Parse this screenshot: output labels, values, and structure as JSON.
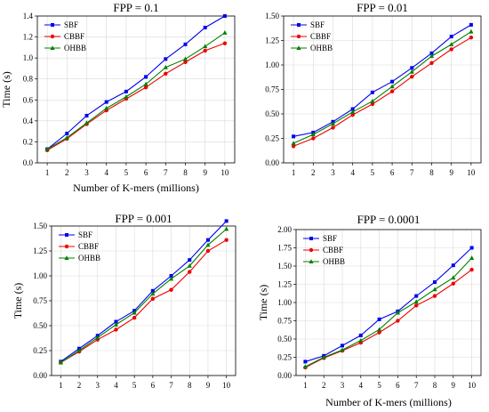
{
  "chart_data": [
    {
      "type": "line",
      "title": "FPP = 0.1",
      "xlabel": "Number of K-mers (millions)",
      "ylabel": "Time (s)",
      "x": [
        1,
        2,
        3,
        4,
        5,
        6,
        7,
        8,
        9,
        10
      ],
      "ylim": [
        0,
        1.4
      ],
      "yticks": [
        0,
        0.2,
        0.4,
        0.6,
        0.8,
        1.0,
        1.2,
        1.4
      ],
      "ytick_labels": [
        "0.0",
        "0.2",
        "0.4",
        "0.6",
        "0.8",
        "1.0",
        "1.2",
        "1.4"
      ],
      "grid": true,
      "legend": "top-left",
      "series": [
        {
          "name": "SBF",
          "color": "#0000ee",
          "marker": "square",
          "values": [
            0.13,
            0.28,
            0.45,
            0.58,
            0.68,
            0.82,
            0.99,
            1.13,
            1.29,
            1.4
          ]
        },
        {
          "name": "CBBF",
          "color": "#ee0000",
          "marker": "circle",
          "values": [
            0.12,
            0.23,
            0.37,
            0.5,
            0.61,
            0.72,
            0.85,
            0.96,
            1.07,
            1.14
          ]
        },
        {
          "name": "OHBB",
          "color": "#008000",
          "marker": "triangle",
          "values": [
            0.13,
            0.24,
            0.38,
            0.52,
            0.63,
            0.75,
            0.91,
            0.99,
            1.11,
            1.24
          ]
        }
      ]
    },
    {
      "type": "line",
      "title": "FPP = 0.01",
      "xlabel": "",
      "ylabel": "",
      "x": [
        1,
        2,
        3,
        4,
        5,
        6,
        7,
        8,
        9,
        10
      ],
      "ylim": [
        0,
        1.5
      ],
      "yticks": [
        0,
        0.25,
        0.5,
        0.75,
        1.0,
        1.25,
        1.5
      ],
      "ytick_labels": [
        "0.00",
        "0.25",
        "0.50",
        "0.75",
        "1.00",
        "1.25",
        "1.50"
      ],
      "grid": true,
      "legend": "top-left",
      "series": [
        {
          "name": "SBF",
          "color": "#0000ee",
          "marker": "square",
          "values": [
            0.27,
            0.31,
            0.42,
            0.55,
            0.72,
            0.83,
            0.97,
            1.12,
            1.29,
            1.41
          ]
        },
        {
          "name": "CBBF",
          "color": "#ee0000",
          "marker": "circle",
          "values": [
            0.17,
            0.25,
            0.36,
            0.49,
            0.6,
            0.73,
            0.88,
            1.02,
            1.16,
            1.28
          ]
        },
        {
          "name": "OHBB",
          "color": "#008000",
          "marker": "triangle",
          "values": [
            0.2,
            0.29,
            0.4,
            0.52,
            0.63,
            0.78,
            0.93,
            1.09,
            1.21,
            1.34
          ]
        }
      ]
    },
    {
      "type": "line",
      "title": "FPP = 0.001",
      "xlabel": "",
      "ylabel": "Time (s)",
      "x": [
        1,
        2,
        3,
        4,
        5,
        6,
        7,
        8,
        9,
        10
      ],
      "ylim": [
        0,
        1.5
      ],
      "yticks": [
        0,
        0.25,
        0.5,
        0.75,
        1.0,
        1.25,
        1.5
      ],
      "ytick_labels": [
        "0.00",
        "0.25",
        "0.50",
        "0.75",
        "1.00",
        "1.25",
        "1.50"
      ],
      "grid": true,
      "legend": "top-left",
      "series": [
        {
          "name": "SBF",
          "color": "#0000ee",
          "marker": "square",
          "values": [
            0.14,
            0.27,
            0.4,
            0.54,
            0.65,
            0.85,
            1.0,
            1.16,
            1.36,
            1.55
          ]
        },
        {
          "name": "CBBF",
          "color": "#ee0000",
          "marker": "circle",
          "values": [
            0.13,
            0.24,
            0.36,
            0.46,
            0.58,
            0.77,
            0.86,
            1.04,
            1.25,
            1.36
          ]
        },
        {
          "name": "OHBB",
          "color": "#008000",
          "marker": "triangle",
          "values": [
            0.13,
            0.25,
            0.38,
            0.51,
            0.63,
            0.82,
            0.97,
            1.1,
            1.31,
            1.47
          ]
        }
      ]
    },
    {
      "type": "line",
      "title": "FPP = 0.0001",
      "xlabel": "Number of K-mers (millions)",
      "ylabel": "Time (s)",
      "x": [
        1,
        2,
        3,
        4,
        5,
        6,
        7,
        8,
        9,
        10
      ],
      "ylim": [
        0,
        2.0
      ],
      "yticks": [
        0,
        0.25,
        0.5,
        0.75,
        1.0,
        1.25,
        1.5,
        1.75,
        2.0
      ],
      "ytick_labels": [
        "0.00",
        "0.25",
        "0.50",
        "0.75",
        "1.00",
        "1.25",
        "1.50",
        "1.75",
        "2.00"
      ],
      "grid": true,
      "legend": "top-left",
      "series": [
        {
          "name": "SBF",
          "color": "#0000ee",
          "marker": "square",
          "values": [
            0.19,
            0.27,
            0.41,
            0.55,
            0.77,
            0.88,
            1.09,
            1.28,
            1.51,
            1.75
          ]
        },
        {
          "name": "CBBF",
          "color": "#ee0000",
          "marker": "circle",
          "values": [
            0.11,
            0.24,
            0.34,
            0.45,
            0.59,
            0.75,
            0.96,
            1.09,
            1.26,
            1.45
          ]
        },
        {
          "name": "OHBB",
          "color": "#008000",
          "marker": "triangle",
          "values": [
            0.12,
            0.25,
            0.35,
            0.48,
            0.63,
            0.86,
            1.01,
            1.18,
            1.34,
            1.61
          ]
        }
      ]
    }
  ]
}
